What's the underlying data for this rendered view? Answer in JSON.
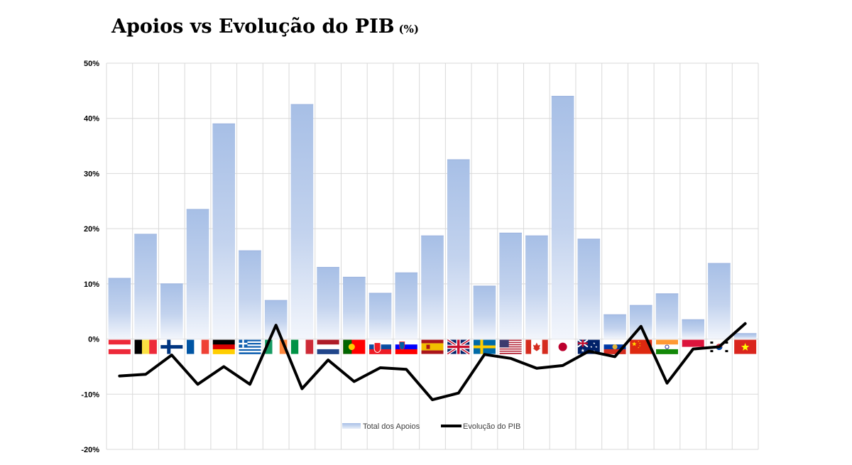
{
  "chart_data": {
    "type": "bar+line",
    "title": "Apoios vs Evolução do PIB",
    "title_unit": "(%)",
    "xlabel": "",
    "ylabel": "",
    "ylim": [
      -20,
      50
    ],
    "yticks": [
      "-20%",
      "-10%",
      "0%",
      "10%",
      "20%",
      "30%",
      "40%",
      "50%"
    ],
    "grid": true,
    "legend_position": "bottom-inside",
    "categories": [
      "Austria",
      "Belgium",
      "Finland",
      "France",
      "Germany",
      "Greece",
      "Ireland",
      "Italy",
      "Netherlands",
      "Portugal",
      "Slovakia",
      "Slovenia",
      "Spain",
      "United Kingdom",
      "Sweden",
      "United States",
      "Canada",
      "Japan",
      "Australia",
      "Russia",
      "China",
      "India",
      "Poland",
      "South Korea",
      "Vietnam"
    ],
    "series": [
      {
        "name": "Total dos Apoios",
        "type": "bar",
        "color": "#aec3e6",
        "values": [
          11,
          19,
          10,
          23.5,
          39,
          16,
          7,
          42.5,
          13,
          11.2,
          8.3,
          12,
          18.7,
          32.5,
          9.6,
          19.2,
          18.7,
          44,
          18.1,
          4.4,
          6.1,
          8.2,
          3.5,
          13.7,
          1
        ]
      },
      {
        "name": "Evolução do PIB",
        "type": "line",
        "color": "#000000",
        "values": [
          -6.7,
          -6.4,
          -2.9,
          -8.2,
          -5.0,
          -8.2,
          2.5,
          -9.0,
          -3.8,
          -7.7,
          -5.2,
          -5.5,
          -11.0,
          -9.8,
          -2.8,
          -3.5,
          -5.3,
          -4.8,
          -2.2,
          -3.2,
          2.3,
          -8.0,
          -1.8,
          -1.4,
          2.8
        ]
      }
    ],
    "flags": [
      "austria-flag",
      "belgium-flag",
      "finland-flag",
      "france-flag",
      "germany-flag",
      "greece-flag",
      "ireland-flag",
      "italy-flag",
      "netherlands-flag",
      "portugal-flag",
      "slovakia-flag",
      "slovenia-flag",
      "spain-flag",
      "uk-flag",
      "sweden-flag",
      "usa-flag",
      "canada-flag",
      "japan-flag",
      "australia-flag",
      "russia-flag",
      "china-flag",
      "india-flag",
      "poland-flag",
      "south-korea-flag",
      "vietnam-flag"
    ]
  }
}
